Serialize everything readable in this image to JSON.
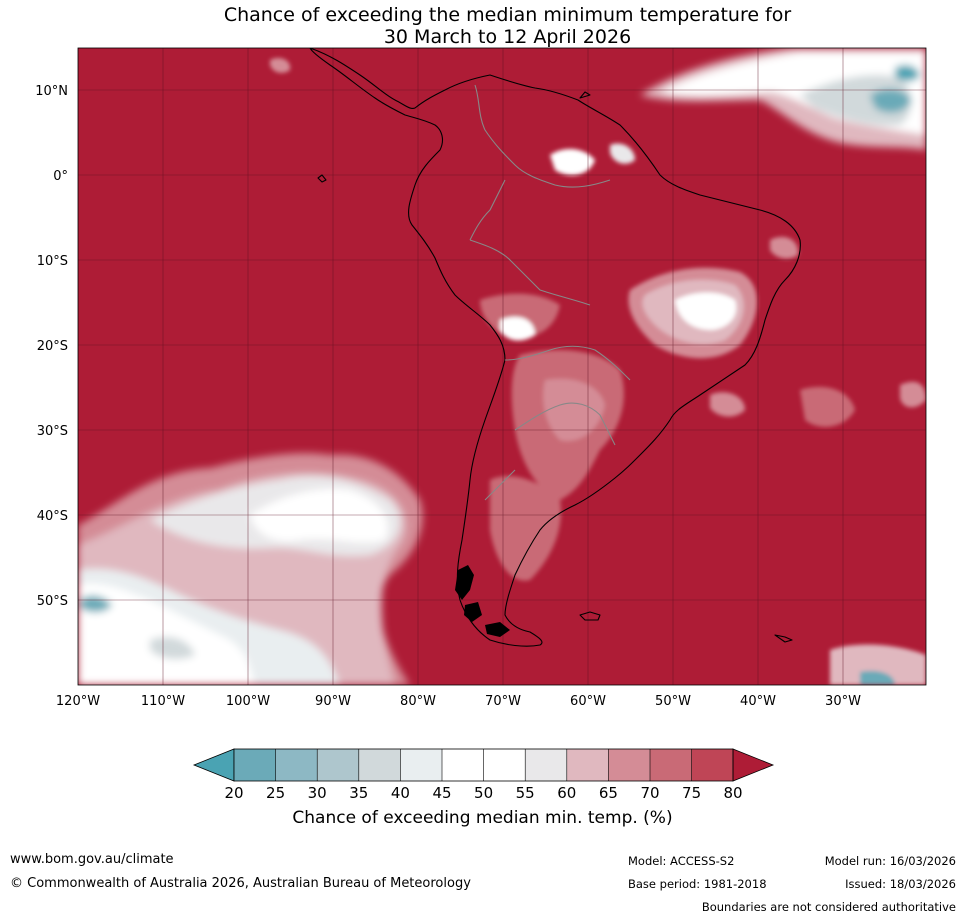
{
  "title": {
    "line1": "Chance of exceeding the median minimum temperature for",
    "line2": "30 March to 12 April 2026"
  },
  "axes": {
    "lat_labels": [
      "10°N",
      "0°",
      "10°S",
      "20°S",
      "30°S",
      "40°S",
      "50°S"
    ],
    "lon_labels": [
      "120°W",
      "110°W",
      "100°W",
      "90°W",
      "80°W",
      "70°W",
      "60°W",
      "50°W",
      "40°W",
      "30°W"
    ]
  },
  "colorbar": {
    "ticks": [
      "20",
      "25",
      "30",
      "35",
      "40",
      "45",
      "50",
      "55",
      "60",
      "65",
      "70",
      "75",
      "80"
    ],
    "colors": [
      "#4aa3b3",
      "#6baab8",
      "#8db8c4",
      "#aec6cd",
      "#d1d9db",
      "#e9eef0",
      "#ffffff",
      "#ffffff",
      "#e9e8ea",
      "#e0b8bf",
      "#d48c96",
      "#c96a76",
      "#bf4556",
      "#ae1c36"
    ],
    "label": "Chance of exceeding median min. temp. (%)"
  },
  "footer": {
    "website": "www.bom.gov.au/climate",
    "copyright": "© Commonwealth of Australia 2026, Australian Bureau of Meteorology",
    "model": "Model: ACCESS-S2",
    "base_period": "Base period: 1981-2018",
    "model_run": "Model run: 16/03/2026",
    "issued": "Issued: 18/03/2026",
    "disclaimer": "Boundaries are not considered authoritative"
  }
}
